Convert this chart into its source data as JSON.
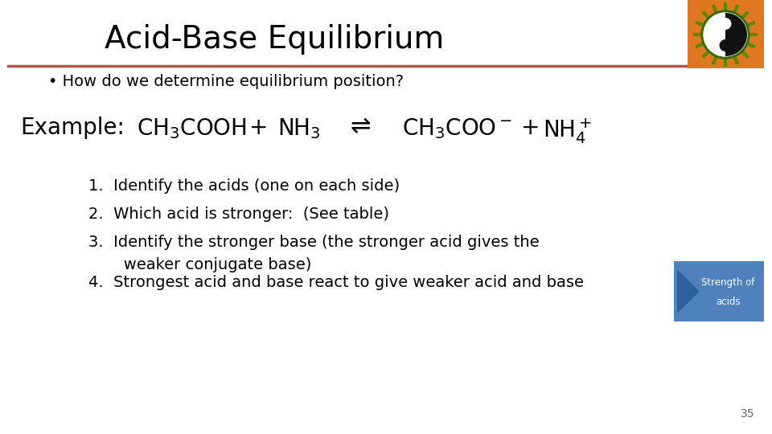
{
  "title": "Acid-Base Equilibrium",
  "title_fontsize": 28,
  "title_color": "#000000",
  "subtitle": "• How do we determine equilibrium position?",
  "subtitle_fontsize": 14,
  "line_color": "#C0504D",
  "bg_color": "#FFFFFF",
  "example_label": "Example:",
  "example_fontsize": 20,
  "equation_fontsize": 20,
  "items": [
    "1.  Identify the acids (one on each side)",
    "2.  Which acid is stronger:  (See table)",
    "3.  Identify the stronger base (the stronger acid gives the\n       weaker conjugate base)",
    "4.  Strongest acid and base react to give weaker acid and base"
  ],
  "items_fontsize": 14,
  "button_color": "#4F81BD",
  "button_arrow_color": "#2E6099",
  "button_text_line1": "Strength of",
  "button_text_line2": "acids",
  "button_text_color": "#FFFFFF",
  "page_number": "35",
  "icon_bg_color": "#E07820",
  "icon_ring_outer": "#5A8A00",
  "icon_ring_inner": "#000000",
  "icon_center": "#000000"
}
